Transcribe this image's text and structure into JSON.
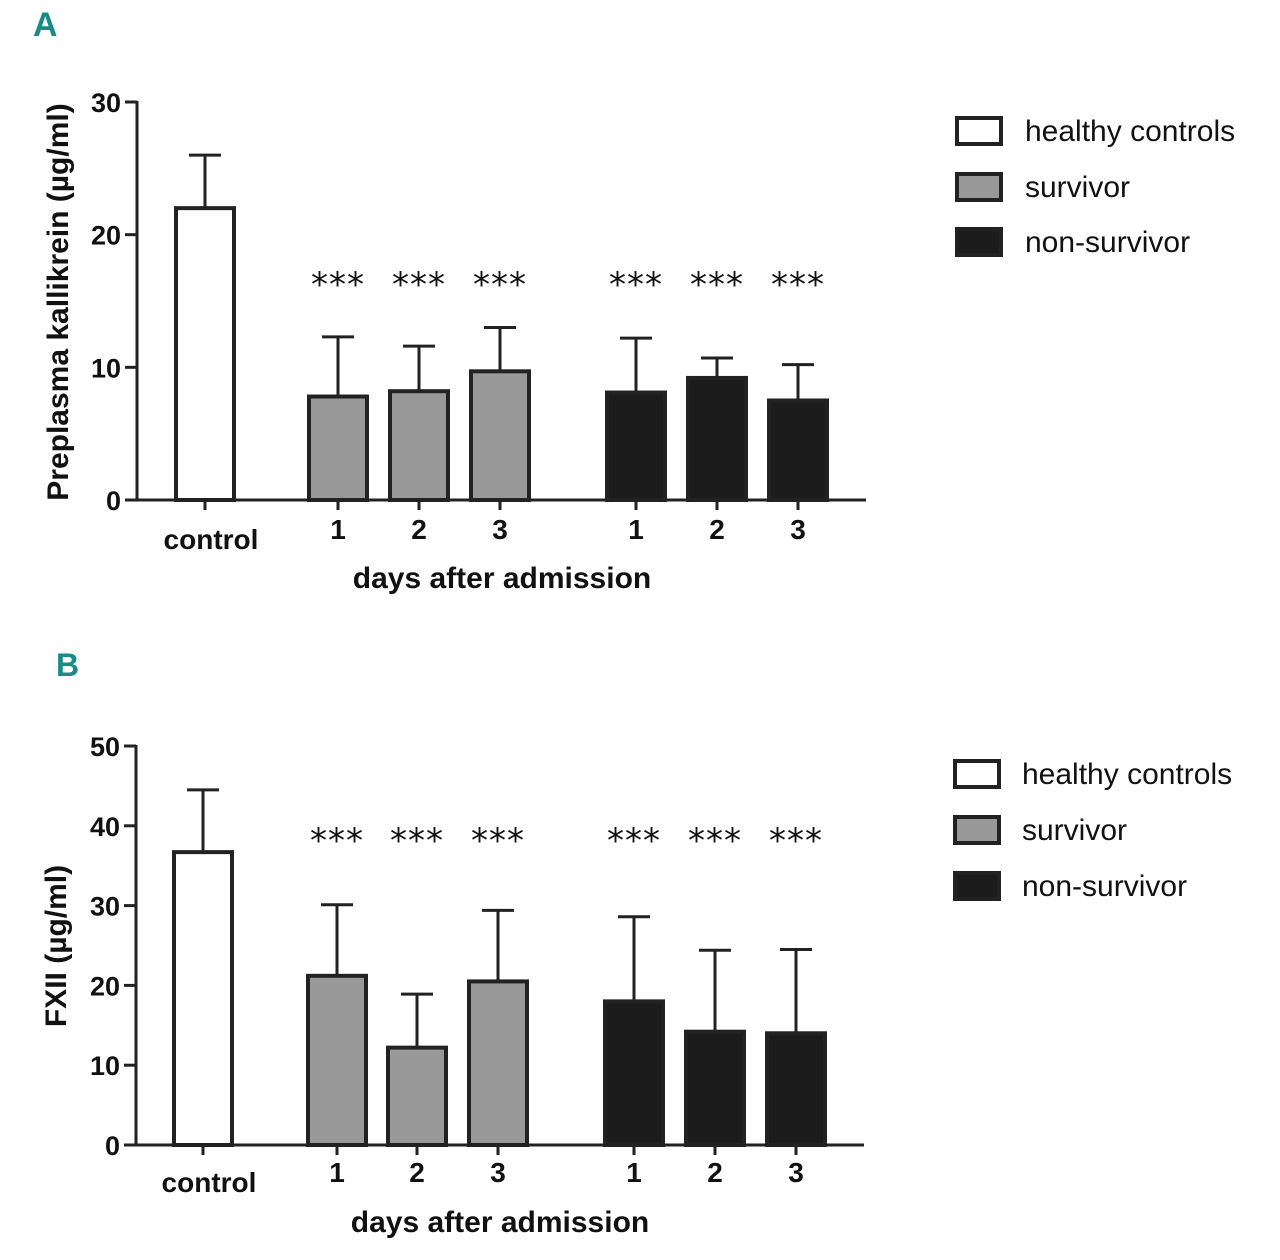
{
  "figure": {
    "legend": [
      {
        "label": "healthy controls",
        "color": "#ffffff"
      },
      {
        "label": "survivor",
        "color": "#999999"
      },
      {
        "label": "non-survivor",
        "color": "#1c1c1c"
      }
    ]
  },
  "chart_data": [
    {
      "type": "bar",
      "panel": "A",
      "title": "",
      "ylabel": "Preplasma kallikrein (µg/ml)",
      "xlabel": "days after admission",
      "ylim": [
        0,
        30
      ],
      "yticks": [
        0,
        10,
        20,
        30
      ],
      "grid": false,
      "legend_position": "top-right",
      "categories": [
        "control",
        "1",
        "2",
        "3",
        "1",
        "2",
        "3"
      ],
      "groups": [
        "healthy controls",
        "survivor",
        "survivor",
        "survivor",
        "non-survivor",
        "non-survivor",
        "non-survivor"
      ],
      "values": [
        22.0,
        7.8,
        8.2,
        9.7,
        8.1,
        9.2,
        7.5
      ],
      "errors": [
        4.0,
        4.5,
        3.4,
        3.3,
        4.1,
        1.5,
        2.7
      ],
      "significance": [
        "",
        "***",
        "***",
        "***",
        "***",
        "***",
        "***"
      ]
    },
    {
      "type": "bar",
      "panel": "B",
      "title": "",
      "ylabel": "FXII (µg/ml)",
      "xlabel": "days after admission",
      "ylim": [
        0,
        50
      ],
      "yticks": [
        0,
        10,
        20,
        30,
        40,
        50
      ],
      "grid": false,
      "legend_position": "top-right",
      "categories": [
        "control",
        "1",
        "2",
        "3",
        "1",
        "2",
        "3"
      ],
      "groups": [
        "healthy controls",
        "survivor",
        "survivor",
        "survivor",
        "non-survivor",
        "non-survivor",
        "non-survivor"
      ],
      "values": [
        36.7,
        21.2,
        12.2,
        20.5,
        18.0,
        14.2,
        14.0
      ],
      "errors": [
        7.8,
        8.9,
        6.7,
        8.9,
        10.6,
        10.2,
        10.5
      ],
      "significance": [
        "",
        "***",
        "***",
        "***",
        "***",
        "***",
        "***"
      ]
    }
  ]
}
